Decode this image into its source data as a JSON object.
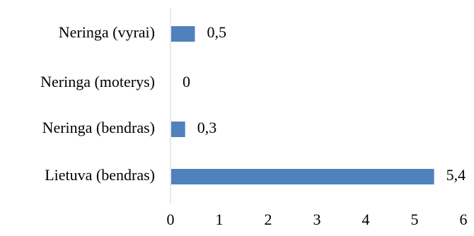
{
  "chart_data": {
    "type": "bar",
    "orientation": "horizontal",
    "title": "",
    "xlabel": "",
    "ylabel": "",
    "categories": [
      "Neringa (vyrai)",
      "Neringa (moterys)",
      "Neringa (bendras)",
      "Lietuva (bendras)"
    ],
    "values": [
      0.5,
      0,
      0.3,
      5.4
    ],
    "data_labels": [
      "0,5",
      "0",
      "0,3",
      "5,4"
    ],
    "xlim": [
      0,
      6
    ],
    "xticks": [
      "0",
      "1",
      "2",
      "3",
      "4",
      "5",
      "6"
    ],
    "grid": false,
    "legend": "none",
    "bar_color": "#4f81bd",
    "axis_color": "#d9d9d9"
  }
}
